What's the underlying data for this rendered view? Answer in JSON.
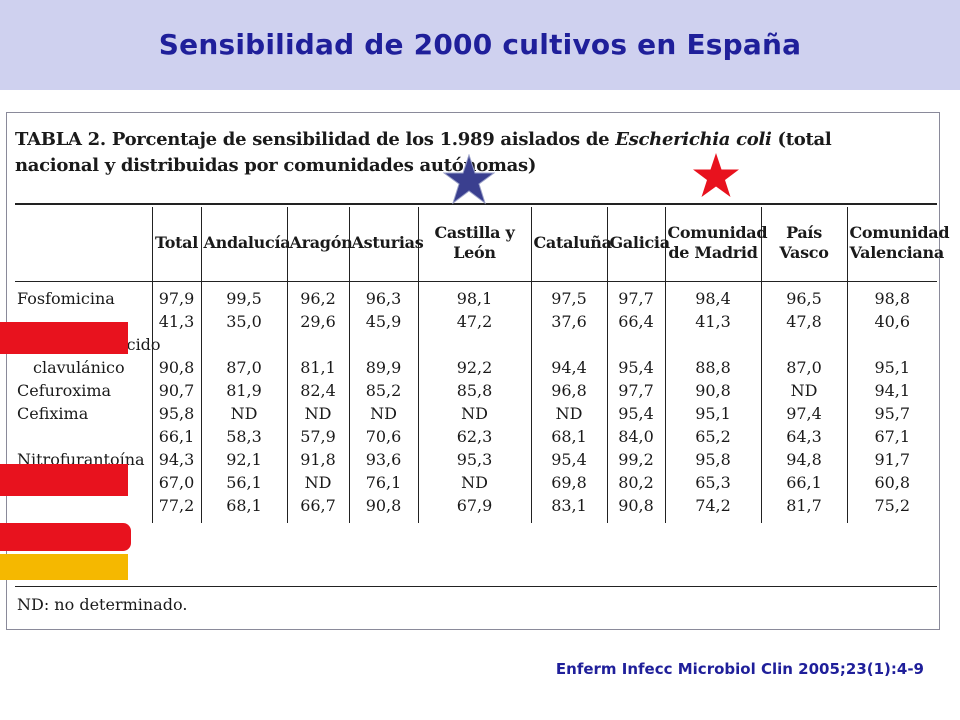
{
  "header": {
    "title": "Sensibilidad de 2000 cultivos en España"
  },
  "table": {
    "caption_prefix": "TABLA 2. Porcentaje de sensibilidad de los 1.989 aislados de ",
    "caption_organism": "Escherichia coli",
    "caption_suffix": " (total nacional y distribuidas por comunidades autónomas)",
    "columns": [
      "",
      "Total",
      "Andalucía",
      "Aragón",
      "Asturias",
      "Castilla y León",
      "Cataluña",
      "Galicia",
      "Comunidad de Madrid",
      "País Vasco",
      "Comunidad Valenciana"
    ],
    "rows": [
      {
        "drug": "Fosfomicina",
        "values": [
          "97,9",
          "99,5",
          "96,2",
          "96,3",
          "98,1",
          "97,5",
          "97,7",
          "98,4",
          "96,5",
          "98,8"
        ]
      },
      {
        "drug": "",
        "values": [
          "41,3",
          "35,0",
          "29,6",
          "45,9",
          "47,2",
          "37,6",
          "66,4",
          "41,3",
          "47,8",
          "40,6"
        ]
      },
      {
        "drug": "Amoxicilina-ácido clavulánico",
        "drug_line1": "Amoxicilina-ácido",
        "drug_line2": "clavulánico",
        "values": [
          "90,8",
          "87,0",
          "81,1",
          "89,9",
          "92,2",
          "94,4",
          "95,4",
          "88,8",
          "87,0",
          "95,1"
        ]
      },
      {
        "drug": "Cefuroxima",
        "values": [
          "90,7",
          "81,9",
          "82,4",
          "85,2",
          "85,8",
          "96,8",
          "97,7",
          "90,8",
          "ND",
          "94,1"
        ]
      },
      {
        "drug": "Cefixima",
        "values": [
          "95,8",
          "ND",
          "ND",
          "ND",
          "ND",
          "ND",
          "95,4",
          "95,1",
          "97,4",
          "95,7"
        ]
      },
      {
        "drug": "",
        "values": [
          "66,1",
          "58,3",
          "57,9",
          "70,6",
          "62,3",
          "68,1",
          "84,0",
          "65,2",
          "64,3",
          "67,1"
        ]
      },
      {
        "drug": "Nitrofurantoína",
        "values": [
          "94,3",
          "92,1",
          "91,8",
          "93,6",
          "95,3",
          "95,4",
          "99,2",
          "95,8",
          "94,8",
          "91,7"
        ]
      },
      {
        "drug": "",
        "values": [
          "67,0",
          "56,1",
          "ND",
          "76,1",
          "ND",
          "69,8",
          "80,2",
          "65,3",
          "66,1",
          "60,8"
        ]
      },
      {
        "drug": "",
        "values": [
          "77,2",
          "68,1",
          "66,7",
          "90,8",
          "67,9",
          "83,1",
          "90,8",
          "74,2",
          "81,7",
          "75,2"
        ]
      }
    ],
    "footnote": "ND: no determinado."
  },
  "highlights": {
    "red": "#e8121e",
    "amber": "#f5b800",
    "blue_star": "#3a3f8f",
    "red_star": "#e8121e"
  },
  "citation": "Enferm Infecc Microbiol Clin 2005;23(1):4-9"
}
